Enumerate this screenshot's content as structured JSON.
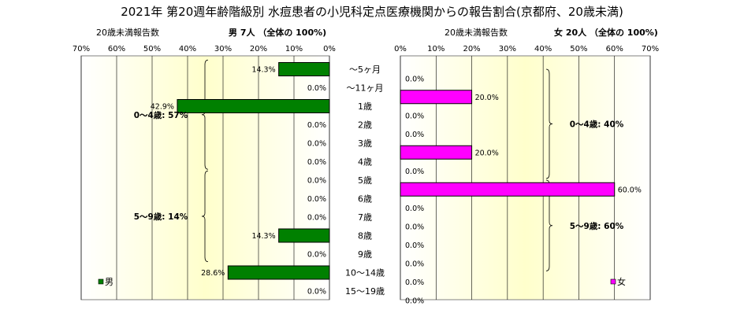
{
  "colors": {
    "male_bar": "#008000",
    "female_bar": "#ff00ff",
    "plot_bg": "#ffffcc",
    "grid": "#000000"
  },
  "chart_data": [
    {
      "type": "bar",
      "orientation": "horizontal",
      "title": "2021年 第20週年齢階級別 水痘患者の小児科定点医療機関からの報告割合(京都府、20歳未満)",
      "header_left": "20歳未満報告数",
      "header_right": "男  7人 （全体の  100%)",
      "direction": "leftward",
      "xlim": [
        0,
        70
      ],
      "xticks": [
        "70%",
        "60%",
        "50%",
        "40%",
        "30%",
        "20%",
        "10%",
        "0%"
      ],
      "grid": "vertical",
      "categories": [
        "～5ヶ月",
        "～11ヶ月",
        "1歳",
        "2歳",
        "3歳",
        "4歳",
        "5歳",
        "6歳",
        "7歳",
        "8歳",
        "9歳",
        "10～14歳",
        "15～19歳"
      ],
      "series": [
        {
          "name": "男",
          "values": [
            14.3,
            0.0,
            42.9,
            0.0,
            0.0,
            0.0,
            0.0,
            0.0,
            0.0,
            14.3,
            0.0,
            28.6,
            0.0
          ],
          "labels": [
            "14.3%",
            "0.0%",
            "42.9%",
            "0.0%",
            "0.0%",
            "0.0%",
            "0.0%",
            "0.0%",
            "0.0%",
            "14.3%",
            "0.0%",
            "28.6%",
            "0.0%"
          ]
        }
      ],
      "annotations": [
        {
          "text": "0～4歳: 57%",
          "from_category": "～5ヶ月",
          "to_category": "4歳"
        },
        {
          "text": "5～9歳: 14%",
          "from_category": "5歳",
          "to_category": "9歳"
        }
      ],
      "legend": "bottom-left"
    },
    {
      "type": "bar",
      "orientation": "horizontal",
      "header_left": "20歳未満報告数",
      "header_right": "女  20人 （全体の  100%)",
      "direction": "rightward",
      "xlim": [
        0,
        70
      ],
      "xticks": [
        "0%",
        "10%",
        "20%",
        "30%",
        "40%",
        "50%",
        "60%",
        "70%"
      ],
      "grid": "vertical",
      "categories": [
        "～5ヶ月",
        "～11ヶ月",
        "1歳",
        "2歳",
        "3歳",
        "4歳",
        "5歳",
        "6歳",
        "7歳",
        "8歳",
        "9歳",
        "10～14歳",
        "15～19歳"
      ],
      "series": [
        {
          "name": "女",
          "values": [
            0.0,
            20.0,
            0.0,
            0.0,
            20.0,
            0.0,
            60.0,
            0.0,
            0.0,
            0.0,
            0.0,
            0.0,
            0.0
          ],
          "labels": [
            "0.0%",
            "20.0%",
            "0.0%",
            "0.0%",
            "20.0%",
            "0.0%",
            "60.0%",
            "0.0%",
            "0.0%",
            "0.0%",
            "0.0%",
            "0.0%",
            "0.0%"
          ]
        }
      ],
      "annotations": [
        {
          "text": "0～4歳: 40%",
          "from_category": "～5ヶ月",
          "to_category": "4歳"
        },
        {
          "text": "5～9歳: 60%",
          "from_category": "5歳",
          "to_category": "9歳"
        }
      ],
      "legend": "bottom-right"
    }
  ]
}
